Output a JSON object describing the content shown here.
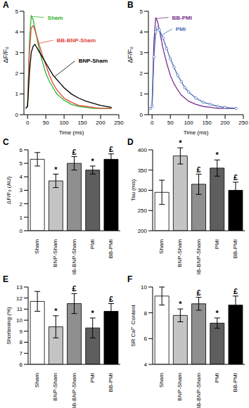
{
  "chart_data": [
    {
      "type": "line",
      "title": "A",
      "xlabel": "Time (ms)",
      "ylabel": "ΔF/F₀",
      "x": [
        -5,
        0,
        5,
        10,
        15,
        20,
        30,
        40,
        50,
        60,
        70,
        80,
        90,
        100,
        120,
        140,
        160,
        180,
        200,
        230
      ],
      "xlim": [
        -10,
        250
      ],
      "xticks": [
        0,
        50,
        100,
        150,
        200,
        250
      ],
      "ylim": [
        0,
        5
      ],
      "yticks": [
        0,
        1,
        2,
        3,
        4,
        5
      ],
      "series": [
        {
          "name": "Sham",
          "color": "#2fb52f",
          "marker": "none",
          "values": [
            0.3,
            0.4,
            3.5,
            4.8,
            4.6,
            4.2,
            3.3,
            2.6,
            2.0,
            1.6,
            1.3,
            1.0,
            0.85,
            0.7,
            0.5,
            0.4,
            0.35,
            0.3,
            0.3,
            0.3
          ],
          "annotation": {
            "x": 45,
            "y": 4.7,
            "target_x": 13,
            "target_y": 4.75
          }
        },
        {
          "name": "BB-BNP-Sham",
          "color": "#e0443a",
          "marker": "none",
          "values": [
            0.3,
            0.4,
            3.0,
            4.2,
            4.3,
            4.1,
            3.5,
            2.9,
            2.4,
            1.9,
            1.5,
            1.2,
            1.0,
            0.8,
            0.6,
            0.45,
            0.4,
            0.35,
            0.3,
            0.3
          ],
          "annotation": {
            "x": 70,
            "y": 3.6,
            "target_x": 32,
            "target_y": 3.45
          }
        },
        {
          "name": "BNP-Sham",
          "color": "#000000",
          "marker": "none",
          "values": [
            0.3,
            0.4,
            2.0,
            3.0,
            3.3,
            3.4,
            3.1,
            2.8,
            2.5,
            2.2,
            1.9,
            1.7,
            1.5,
            1.3,
            1.0,
            0.8,
            0.65,
            0.55,
            0.45,
            0.35
          ],
          "annotation": {
            "x": 130,
            "y": 2.6,
            "target_x": 75,
            "target_y": 1.85
          }
        }
      ]
    },
    {
      "type": "line",
      "title": "B",
      "xlabel": "Time (ms)",
      "ylabel": "ΔF/F₀",
      "x": [
        -5,
        0,
        5,
        10,
        15,
        20,
        30,
        40,
        50,
        60,
        70,
        80,
        90,
        100,
        120,
        140,
        160,
        180,
        200,
        230
      ],
      "xlim": [
        -10,
        250
      ],
      "xticks": [
        0,
        50,
        100,
        150,
        200,
        250
      ],
      "ylim": [
        0,
        5
      ],
      "yticks": [
        0,
        1,
        2,
        3,
        4,
        5
      ],
      "series": [
        {
          "name": "BB-PMI",
          "color": "#7b2f8e",
          "marker": "none",
          "values": [
            0.3,
            0.4,
            3.5,
            4.7,
            4.5,
            4.1,
            3.2,
            2.5,
            1.9,
            1.5,
            1.2,
            0.95,
            0.8,
            0.65,
            0.5,
            0.4,
            0.35,
            0.3,
            0.3,
            0.3
          ],
          "annotation": {
            "x": 45,
            "y": 4.7,
            "target_x": 13,
            "target_y": 4.65
          }
        },
        {
          "name": "PMI",
          "color": "#4a70b8",
          "marker": "circle",
          "values": [
            0.3,
            0.4,
            2.8,
            4.0,
            4.2,
            4.1,
            3.7,
            3.2,
            2.7,
            2.3,
            1.9,
            1.6,
            1.3,
            1.1,
            0.8,
            0.6,
            0.5,
            0.4,
            0.35,
            0.3
          ],
          "annotation": {
            "x": 55,
            "y": 4.15,
            "target_x": 27,
            "target_y": 3.85
          }
        }
      ]
    },
    {
      "type": "bar",
      "title": "C",
      "ylabel": "ΔF/F₀ (AU)",
      "categories": [
        "Sham",
        "BNP-Sham",
        "BB-BNP-Sham",
        "PMI",
        "BB-PMI"
      ],
      "colors": [
        "#ffffff",
        "#c4c4c4",
        "#8f8f8f",
        "#5e5e5e",
        "#000000"
      ],
      "values": [
        5.3,
        3.7,
        5.0,
        4.5,
        5.3
      ],
      "errors": [
        0.5,
        0.5,
        0.5,
        0.3,
        0.4
      ],
      "annotations": [
        null,
        "*",
        "£",
        "*",
        "£"
      ],
      "ylim": [
        0,
        6
      ],
      "yticks": [
        0,
        1,
        2,
        3,
        4,
        5,
        6
      ]
    },
    {
      "type": "bar",
      "title": "D",
      "ylabel": "Tau (ms)",
      "categories": [
        "Sham",
        "BNP-Sham",
        "BB-BNP-Sham",
        "PMI",
        "BB-PMI"
      ],
      "colors": [
        "#ffffff",
        "#c4c4c4",
        "#8f8f8f",
        "#5e5e5e",
        "#000000"
      ],
      "values": [
        295,
        385,
        315,
        355,
        300
      ],
      "errors": [
        30,
        20,
        25,
        20,
        20
      ],
      "annotations": [
        null,
        "*",
        "£",
        "*",
        "£"
      ],
      "ylim": [
        200,
        400
      ],
      "yticks": [
        200,
        250,
        300,
        350,
        400
      ]
    },
    {
      "type": "bar",
      "title": "E",
      "ylabel": "Shortening (%)",
      "categories": [
        "Sham",
        "BNP-Sham",
        "BB-BNP-Sham",
        "PMI",
        "BB-PMI"
      ],
      "colors": [
        "#ffffff",
        "#c4c4c4",
        "#8f8f8f",
        "#5e5e5e",
        "#000000"
      ],
      "values": [
        11.7,
        9.4,
        11.5,
        9.3,
        10.8
      ],
      "errors": [
        0.9,
        1.0,
        0.9,
        0.9,
        0.7
      ],
      "annotations": [
        null,
        "*",
        "£",
        "*",
        "£"
      ],
      "ylim": [
        6,
        13
      ],
      "yticks": [
        6,
        7,
        8,
        9,
        10,
        11,
        12,
        13
      ]
    },
    {
      "type": "bar",
      "title": "F",
      "ylabel": "SR Ca²⁺ Content",
      "categories": [
        "Sham",
        "BNP-Sham",
        "BB-BNP-Sham",
        "PMI",
        "BB-PMI"
      ],
      "colors": [
        "#ffffff",
        "#c4c4c4",
        "#8f8f8f",
        "#5e5e5e",
        "#000000"
      ],
      "values": [
        9.3,
        7.8,
        8.7,
        7.2,
        8.6
      ],
      "errors": [
        0.7,
        0.5,
        0.5,
        0.4,
        0.7
      ],
      "annotations": [
        null,
        "*",
        "£",
        "*",
        "£"
      ],
      "ylim": [
        4,
        10
      ],
      "yticks": [
        4,
        6,
        8,
        10
      ]
    }
  ]
}
